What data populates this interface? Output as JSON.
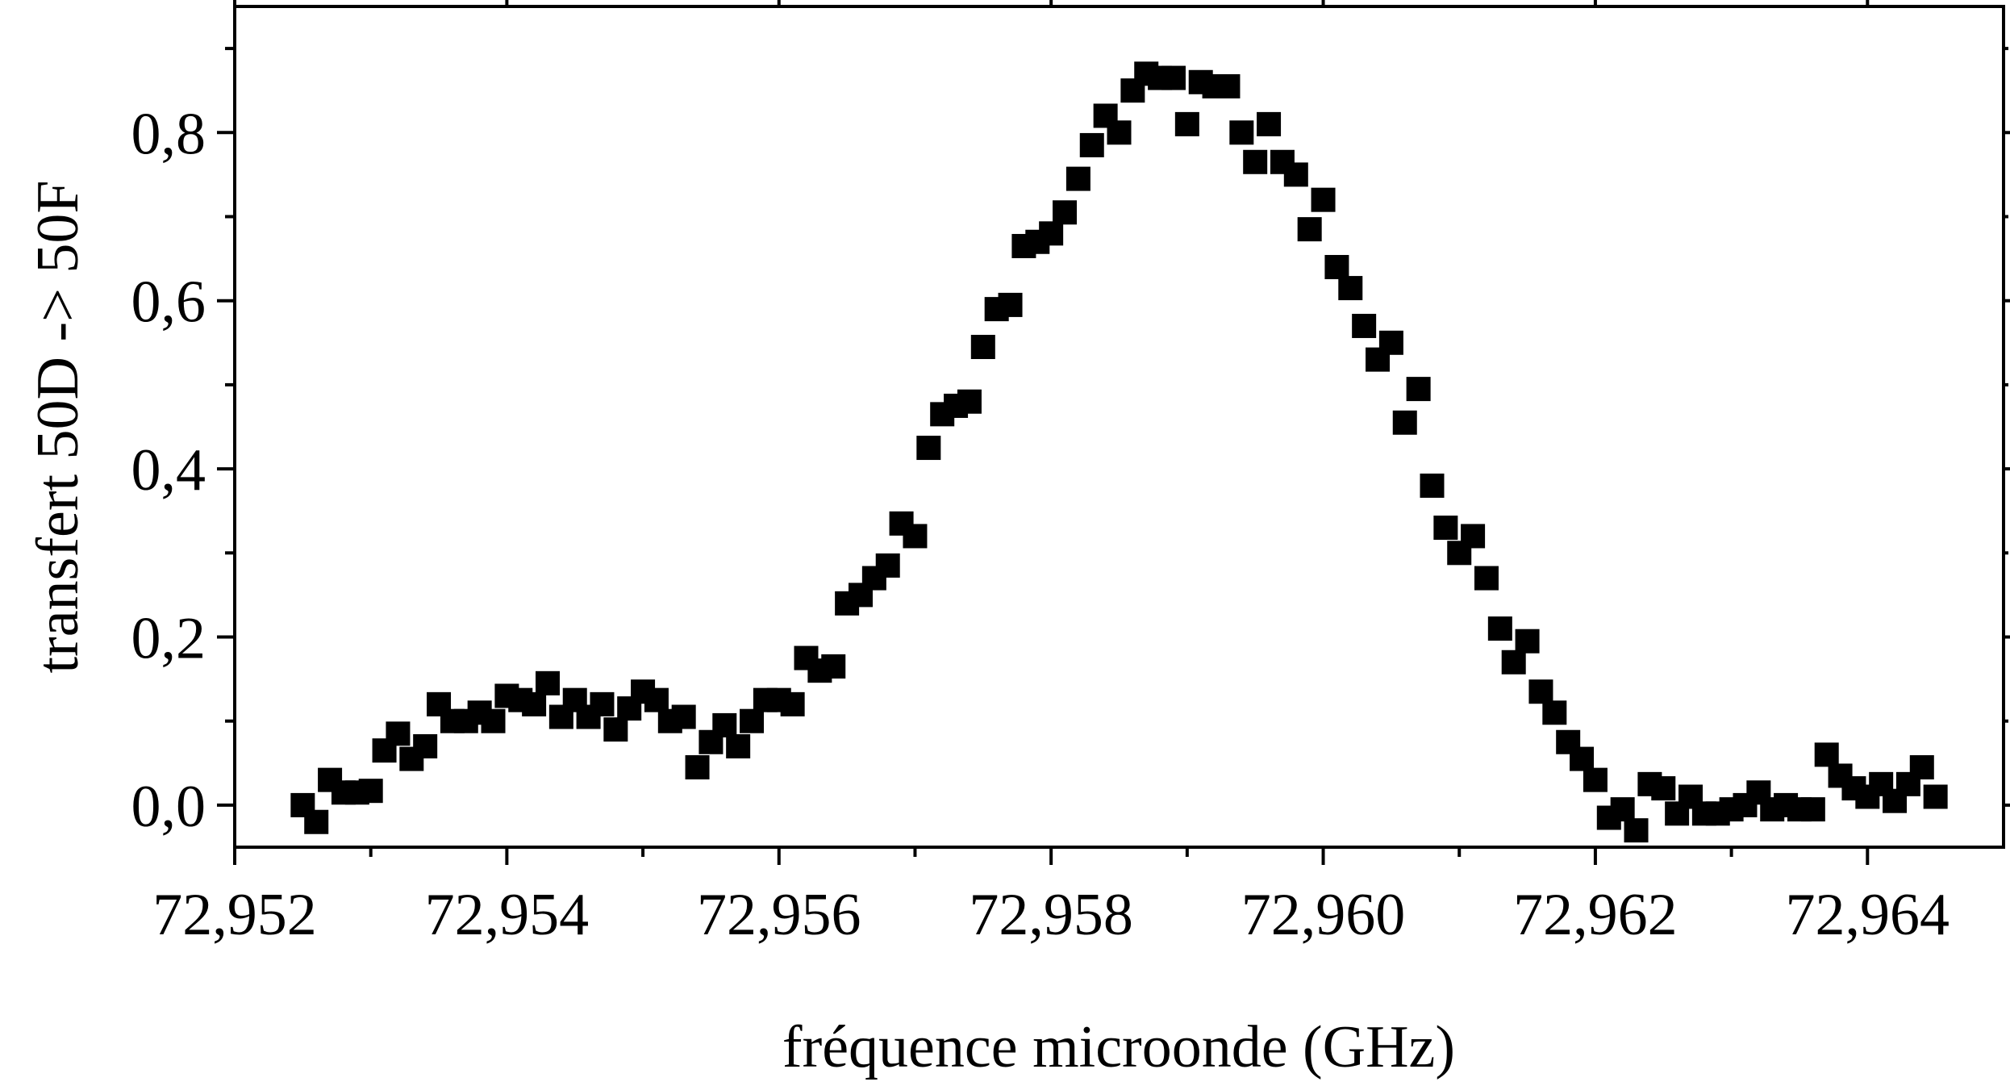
{
  "chart_data": {
    "type": "scatter",
    "title": "",
    "xlabel": "fréquence microonde (GHz)",
    "ylabel": "transfert 50D -> 50F",
    "xlim": [
      72.952,
      72.965
    ],
    "ylim": [
      -0.05,
      0.95
    ],
    "grid": false,
    "legend": "none",
    "marker": "square",
    "marker_color": "#000000",
    "x_ticks": [
      72.952,
      72.954,
      72.956,
      72.958,
      72.96,
      72.962,
      72.964
    ],
    "x_tick_labels": [
      "72,952",
      "72,954",
      "72,956",
      "72,958",
      "72,960",
      "72,962",
      "72,964"
    ],
    "y_ticks": [
      0.0,
      0.2,
      0.4,
      0.6,
      0.8
    ],
    "y_tick_labels": [
      "0,0",
      "0,2",
      "0,4",
      "0,6",
      "0,8"
    ],
    "series": [
      {
        "points": [
          [
            72.9525,
            0.0
          ],
          [
            72.9526,
            -0.02
          ],
          [
            72.9527,
            0.03
          ],
          [
            72.9528,
            0.015
          ],
          [
            72.9529,
            0.015
          ],
          [
            72.953,
            0.017
          ],
          [
            72.9531,
            0.065
          ],
          [
            72.9532,
            0.085
          ],
          [
            72.9533,
            0.055
          ],
          [
            72.9534,
            0.07
          ],
          [
            72.9535,
            0.12
          ],
          [
            72.9536,
            0.1
          ],
          [
            72.9537,
            0.1
          ],
          [
            72.9538,
            0.11
          ],
          [
            72.9539,
            0.1
          ],
          [
            72.954,
            0.13
          ],
          [
            72.9541,
            0.125
          ],
          [
            72.9542,
            0.12
          ],
          [
            72.9543,
            0.145
          ],
          [
            72.9544,
            0.105
          ],
          [
            72.9545,
            0.125
          ],
          [
            72.9546,
            0.105
          ],
          [
            72.9547,
            0.12
          ],
          [
            72.9548,
            0.09
          ],
          [
            72.9549,
            0.115
          ],
          [
            72.955,
            0.135
          ],
          [
            72.9551,
            0.125
          ],
          [
            72.9552,
            0.1
          ],
          [
            72.9553,
            0.105
          ],
          [
            72.9554,
            0.045
          ],
          [
            72.9555,
            0.075
          ],
          [
            72.9556,
            0.095
          ],
          [
            72.9557,
            0.07
          ],
          [
            72.9558,
            0.1
          ],
          [
            72.9559,
            0.125
          ],
          [
            72.956,
            0.125
          ],
          [
            72.9561,
            0.12
          ],
          [
            72.9562,
            0.175
          ],
          [
            72.9563,
            0.16
          ],
          [
            72.9564,
            0.165
          ],
          [
            72.9565,
            0.24
          ],
          [
            72.9566,
            0.25
          ],
          [
            72.9567,
            0.27
          ],
          [
            72.9568,
            0.285
          ],
          [
            72.9569,
            0.335
          ],
          [
            72.957,
            0.32
          ],
          [
            72.9571,
            0.425
          ],
          [
            72.9572,
            0.465
          ],
          [
            72.9573,
            0.475
          ],
          [
            72.9574,
            0.48
          ],
          [
            72.9575,
            0.545
          ],
          [
            72.9576,
            0.59
          ],
          [
            72.9577,
            0.595
          ],
          [
            72.9578,
            0.665
          ],
          [
            72.9579,
            0.67
          ],
          [
            72.958,
            0.68
          ],
          [
            72.9581,
            0.705
          ],
          [
            72.9582,
            0.745
          ],
          [
            72.9583,
            0.785
          ],
          [
            72.9584,
            0.82
          ],
          [
            72.9585,
            0.8
          ],
          [
            72.9586,
            0.85
          ],
          [
            72.9587,
            0.87
          ],
          [
            72.9588,
            0.865
          ],
          [
            72.9589,
            0.865
          ],
          [
            72.959,
            0.81
          ],
          [
            72.9591,
            0.86
          ],
          [
            72.9592,
            0.855
          ],
          [
            72.9593,
            0.855
          ],
          [
            72.9594,
            0.8
          ],
          [
            72.9595,
            0.765
          ],
          [
            72.9596,
            0.81
          ],
          [
            72.9597,
            0.765
          ],
          [
            72.9598,
            0.75
          ],
          [
            72.9599,
            0.685
          ],
          [
            72.96,
            0.72
          ],
          [
            72.9601,
            0.64
          ],
          [
            72.9602,
            0.615
          ],
          [
            72.9603,
            0.57
          ],
          [
            72.9604,
            0.53
          ],
          [
            72.9605,
            0.55
          ],
          [
            72.9606,
            0.455
          ],
          [
            72.9607,
            0.495
          ],
          [
            72.9608,
            0.38
          ],
          [
            72.9609,
            0.33
          ],
          [
            72.961,
            0.3
          ],
          [
            72.9611,
            0.32
          ],
          [
            72.9612,
            0.27
          ],
          [
            72.9613,
            0.21
          ],
          [
            72.9614,
            0.17
          ],
          [
            72.9615,
            0.195
          ],
          [
            72.9616,
            0.135
          ],
          [
            72.9617,
            0.11
          ],
          [
            72.9618,
            0.075
          ],
          [
            72.9619,
            0.055
          ],
          [
            72.962,
            0.03
          ],
          [
            72.9621,
            -0.015
          ],
          [
            72.9622,
            -0.005
          ],
          [
            72.9623,
            -0.03
          ],
          [
            72.9624,
            0.025
          ],
          [
            72.9625,
            0.02
          ],
          [
            72.9626,
            -0.01
          ],
          [
            72.9627,
            0.01
          ],
          [
            72.9628,
            -0.01
          ],
          [
            72.9629,
            -0.01
          ],
          [
            72.963,
            -0.005
          ],
          [
            72.9631,
            0.0
          ],
          [
            72.9632,
            0.015
          ],
          [
            72.9633,
            -0.005
          ],
          [
            72.9634,
            0.0
          ],
          [
            72.9635,
            -0.005
          ],
          [
            72.9636,
            -0.005
          ],
          [
            72.9637,
            0.06
          ],
          [
            72.9638,
            0.035
          ],
          [
            72.9639,
            0.02
          ],
          [
            72.964,
            0.01
          ],
          [
            72.9641,
            0.025
          ],
          [
            72.9642,
            0.005
          ],
          [
            72.9643,
            0.025
          ],
          [
            72.9644,
            0.045
          ],
          [
            72.9645,
            0.01
          ]
        ]
      }
    ]
  }
}
